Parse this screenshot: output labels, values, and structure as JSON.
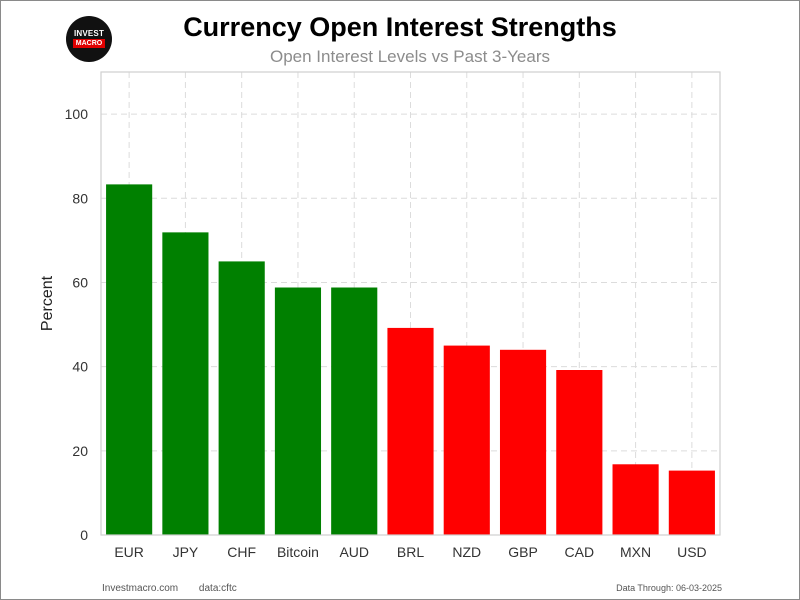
{
  "logo": {
    "line1": "INVEST",
    "line2": "MACRO"
  },
  "chart_data": {
    "type": "bar",
    "title": "Currency Open Interest Strengths",
    "subtitle": "Open Interest Levels vs Past 3-Years",
    "ylabel": "Percent",
    "xlabel": "",
    "ylim": [
      0,
      110
    ],
    "yticks": [
      0,
      20,
      40,
      60,
      80,
      100
    ],
    "grid": true,
    "categories": [
      "EUR",
      "JPY",
      "CHF",
      "Bitcoin",
      "AUD",
      "BRL",
      "NZD",
      "GBP",
      "CAD",
      "MXN",
      "USD"
    ],
    "values": [
      83.3,
      71.9,
      65.0,
      58.8,
      58.8,
      49.2,
      45.0,
      44.0,
      39.2,
      16.8,
      15.3
    ],
    "bar_colors": [
      "#008000",
      "#008000",
      "#008000",
      "#008000",
      "#008000",
      "#ff0000",
      "#ff0000",
      "#ff0000",
      "#ff0000",
      "#ff0000",
      "#ff0000"
    ]
  },
  "footer": {
    "site": "Investmacro.com",
    "source": "data:cftc",
    "date": "Data Through: 06-03-2025"
  }
}
